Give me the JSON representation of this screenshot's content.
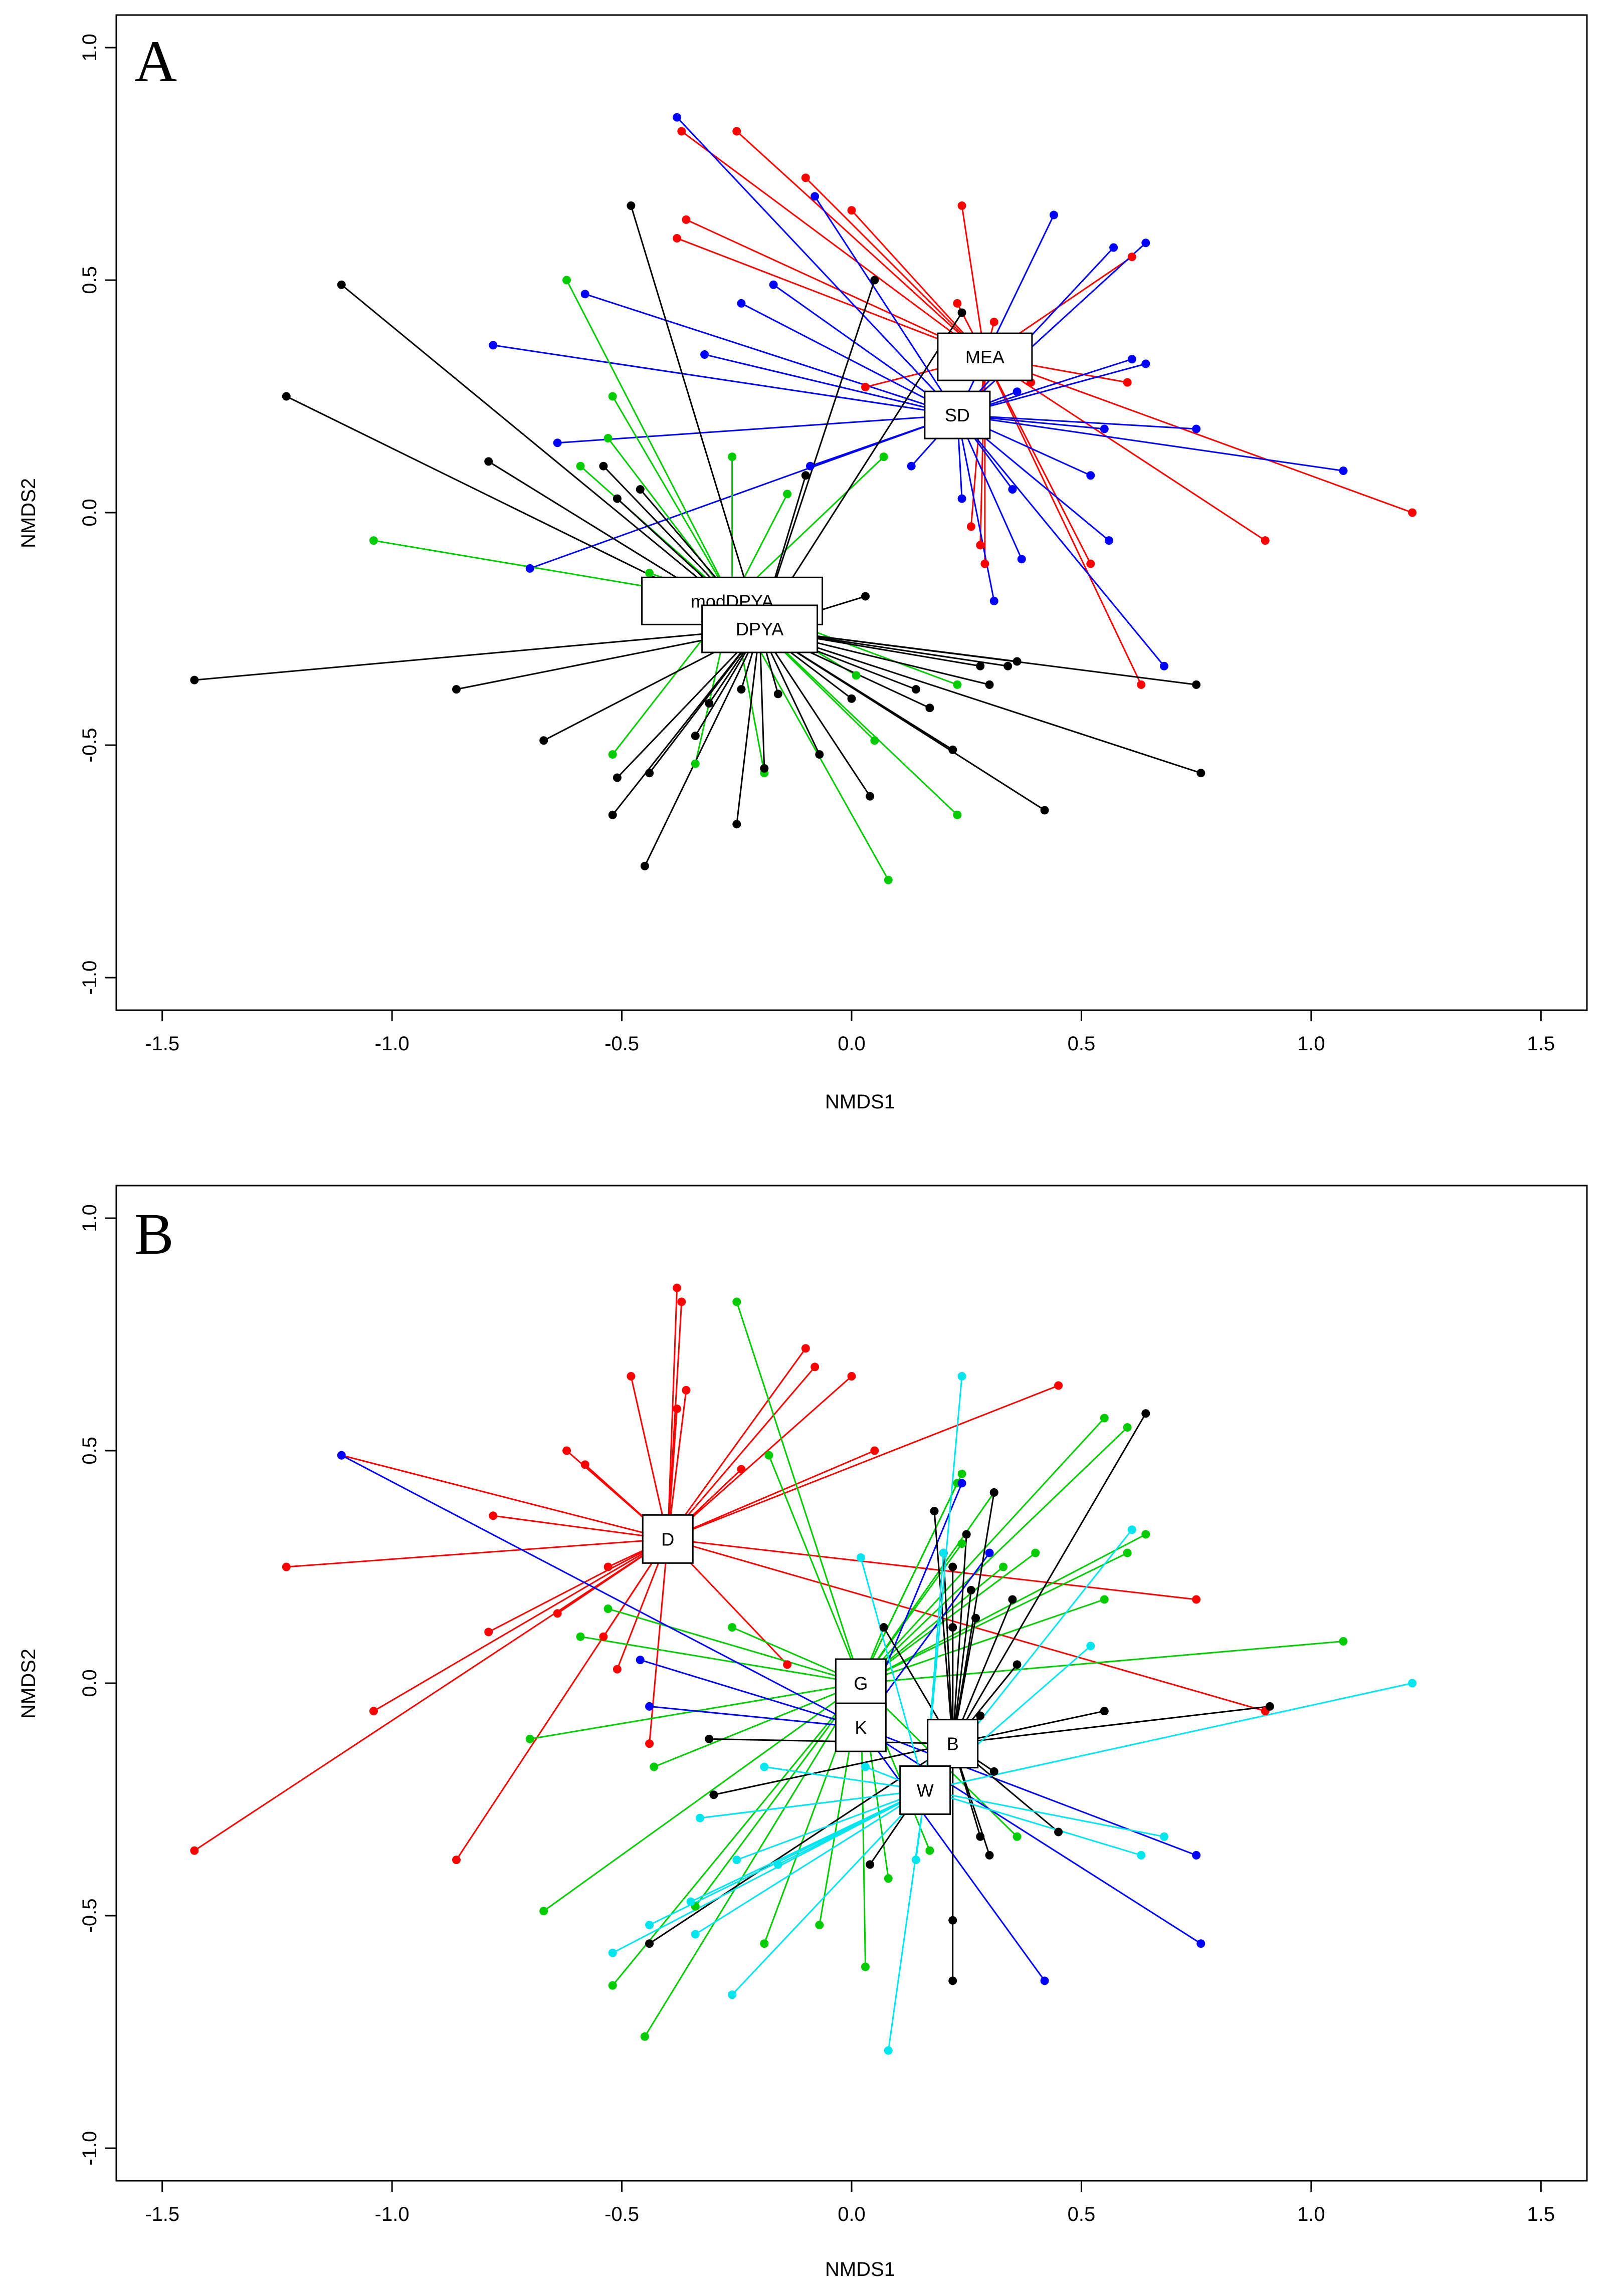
{
  "chart_data": [
    {
      "panel": "A",
      "type": "scatter",
      "subtype": "ordination-spider",
      "xlabel": "NMDS1",
      "ylabel": "NMDS2",
      "xlim": [
        -1.6,
        1.6
      ],
      "ylim": [
        -1.07,
        1.07
      ],
      "xticks": [
        "-1.5",
        "-1.0",
        "-0.5",
        "0.0",
        "0.5",
        "1.0",
        "1.5"
      ],
      "yticks": [
        "-1.0",
        "-0.5",
        "0.0",
        "0.5",
        "1.0"
      ],
      "colors": {
        "black": "#000000",
        "red": "#ff0000",
        "blue": "#0000ff",
        "green": "#00cc00"
      },
      "groups": [
        {
          "label": "MEA",
          "color": "red",
          "centroid": [
            0.29,
            0.335
          ],
          "points": [
            [
              -0.37,
              0.82
            ],
            [
              -0.25,
              0.82
            ],
            [
              -0.1,
              0.72
            ],
            [
              0.0,
              0.65
            ],
            [
              -0.36,
              0.63
            ],
            [
              -0.38,
              0.59
            ],
            [
              0.24,
              0.66
            ],
            [
              0.23,
              0.45
            ],
            [
              0.31,
              0.41
            ],
            [
              0.2,
              0.37
            ],
            [
              0.03,
              0.27
            ],
            [
              0.39,
              0.28
            ],
            [
              0.61,
              0.55
            ],
            [
              0.6,
              0.28
            ],
            [
              1.22,
              0.0
            ],
            [
              0.9,
              -0.06
            ],
            [
              0.52,
              -0.11
            ],
            [
              0.28,
              -0.07
            ],
            [
              0.29,
              -0.11
            ],
            [
              0.63,
              -0.37
            ],
            [
              0.26,
              -0.03
            ]
          ]
        },
        {
          "label": "SD",
          "color": "blue",
          "centroid": [
            0.23,
            0.21
          ],
          "points": [
            [
              -0.38,
              0.85
            ],
            [
              -0.08,
              0.68
            ],
            [
              0.44,
              0.64
            ],
            [
              0.57,
              0.57
            ],
            [
              0.64,
              0.58
            ],
            [
              -0.17,
              0.49
            ],
            [
              -0.24,
              0.45
            ],
            [
              -0.58,
              0.47
            ],
            [
              -0.78,
              0.36
            ],
            [
              -0.32,
              0.34
            ],
            [
              0.61,
              0.33
            ],
            [
              0.64,
              0.32
            ],
            [
              0.36,
              0.26
            ],
            [
              0.55,
              0.18
            ],
            [
              0.75,
              0.18
            ],
            [
              1.07,
              0.09
            ],
            [
              0.52,
              0.08
            ],
            [
              0.35,
              0.05
            ],
            [
              0.24,
              0.03
            ],
            [
              0.56,
              -0.06
            ],
            [
              0.37,
              -0.1
            ],
            [
              0.31,
              -0.19
            ],
            [
              0.68,
              -0.33
            ],
            [
              -0.64,
              0.15
            ],
            [
              -0.09,
              0.1
            ],
            [
              0.13,
              0.1
            ],
            [
              -0.7,
              -0.12
            ]
          ]
        },
        {
          "label": "modDPYA",
          "color": "green",
          "centroid": [
            -0.26,
            -0.19
          ],
          "points": [
            [
              -0.62,
              0.5
            ],
            [
              -0.52,
              0.25
            ],
            [
              -0.53,
              0.16
            ],
            [
              -0.59,
              0.1
            ],
            [
              -0.26,
              0.12
            ],
            [
              0.07,
              0.12
            ],
            [
              -0.14,
              0.04
            ],
            [
              -1.04,
              -0.06
            ],
            [
              -0.44,
              -0.13
            ],
            [
              0.01,
              -0.35
            ],
            [
              0.23,
              -0.37
            ],
            [
              -0.52,
              -0.52
            ],
            [
              -0.34,
              -0.54
            ],
            [
              0.05,
              -0.49
            ],
            [
              -0.19,
              -0.56
            ],
            [
              0.23,
              -0.65
            ],
            [
              0.08,
              -0.79
            ]
          ]
        },
        {
          "label": "DPYA",
          "color": "black",
          "centroid": [
            -0.2,
            -0.25
          ],
          "points": [
            [
              -0.48,
              0.66
            ],
            [
              -1.11,
              0.49
            ],
            [
              -1.23,
              0.25
            ],
            [
              -0.79,
              0.11
            ],
            [
              -0.54,
              0.1
            ],
            [
              -0.46,
              0.05
            ],
            [
              -0.51,
              0.03
            ],
            [
              -0.1,
              0.08
            ],
            [
              0.05,
              0.5
            ],
            [
              0.24,
              0.43
            ],
            [
              0.03,
              -0.18
            ],
            [
              -1.43,
              -0.36
            ],
            [
              -0.86,
              -0.38
            ],
            [
              -0.67,
              -0.49
            ],
            [
              -0.51,
              -0.57
            ],
            [
              -0.52,
              -0.65
            ],
            [
              -0.44,
              -0.56
            ],
            [
              -0.45,
              -0.76
            ],
            [
              -0.25,
              -0.67
            ],
            [
              -0.19,
              -0.55
            ],
            [
              -0.34,
              -0.48
            ],
            [
              -0.31,
              -0.41
            ],
            [
              -0.24,
              -0.38
            ],
            [
              -0.16,
              -0.39
            ],
            [
              -0.07,
              -0.52
            ],
            [
              0.0,
              -0.4
            ],
            [
              0.04,
              -0.61
            ],
            [
              0.14,
              -0.38
            ],
            [
              0.17,
              -0.42
            ],
            [
              0.22,
              -0.51
            ],
            [
              0.28,
              -0.33
            ],
            [
              0.3,
              -0.37
            ],
            [
              0.34,
              -0.33
            ],
            [
              0.36,
              -0.32
            ],
            [
              0.42,
              -0.64
            ],
            [
              0.75,
              -0.37
            ],
            [
              0.76,
              -0.56
            ]
          ]
        }
      ]
    },
    {
      "panel": "B",
      "type": "scatter",
      "subtype": "ordination-spider",
      "xlabel": "NMDS1",
      "ylabel": "NMDS2",
      "xlim": [
        -1.6,
        1.6
      ],
      "ylim": [
        -1.07,
        1.07
      ],
      "xticks": [
        "-1.5",
        "-1.0",
        "-0.5",
        "0.0",
        "0.5",
        "1.0",
        "1.5"
      ],
      "yticks": [
        "-1.0",
        "-0.5",
        "0.0",
        "0.5",
        "1.0"
      ],
      "colors": {
        "black": "#000000",
        "red": "#ff0000",
        "blue": "#0000ff",
        "green": "#00cc00",
        "cyan": "#00e5ee"
      },
      "groups": [
        {
          "label": "D",
          "color": "red",
          "centroid": [
            -0.4,
            0.31
          ],
          "points": [
            [
              -0.38,
              0.85
            ],
            [
              -0.37,
              0.82
            ],
            [
              -0.1,
              0.72
            ],
            [
              -0.08,
              0.68
            ],
            [
              0.0,
              0.66
            ],
            [
              -0.48,
              0.66
            ],
            [
              -0.36,
              0.63
            ],
            [
              -0.38,
              0.59
            ],
            [
              -0.62,
              0.5
            ],
            [
              -0.58,
              0.47
            ],
            [
              -0.24,
              0.46
            ],
            [
              0.05,
              0.5
            ],
            [
              0.45,
              0.64
            ],
            [
              -1.11,
              0.49
            ],
            [
              -0.78,
              0.36
            ],
            [
              -1.23,
              0.25
            ],
            [
              -0.64,
              0.15
            ],
            [
              -0.54,
              0.1
            ],
            [
              -0.51,
              0.03
            ],
            [
              -0.44,
              -0.13
            ],
            [
              -0.79,
              0.11
            ],
            [
              -1.04,
              -0.06
            ],
            [
              -0.86,
              -0.38
            ],
            [
              -1.43,
              -0.36
            ],
            [
              -0.14,
              0.04
            ],
            [
              0.75,
              0.18
            ],
            [
              0.9,
              -0.06
            ],
            [
              -0.53,
              0.25
            ]
          ]
        },
        {
          "label": "G",
          "color": "green",
          "centroid": [
            0.02,
            0.0
          ],
          "points": [
            [
              -0.25,
              0.82
            ],
            [
              -0.18,
              0.49
            ],
            [
              0.24,
              0.45
            ],
            [
              0.55,
              0.57
            ],
            [
              0.6,
              0.55
            ],
            [
              0.64,
              0.32
            ],
            [
              0.6,
              0.28
            ],
            [
              0.4,
              0.28
            ],
            [
              0.55,
              0.18
            ],
            [
              1.07,
              0.09
            ],
            [
              0.31,
              0.41
            ],
            [
              0.24,
              0.3
            ],
            [
              0.07,
              0.12
            ],
            [
              -0.26,
              0.12
            ],
            [
              -0.59,
              0.1
            ],
            [
              -0.53,
              0.16
            ],
            [
              -0.7,
              -0.12
            ],
            [
              -0.43,
              -0.18
            ],
            [
              -0.67,
              -0.49
            ],
            [
              -0.52,
              -0.65
            ],
            [
              -0.45,
              -0.76
            ],
            [
              -0.34,
              -0.48
            ],
            [
              -0.19,
              -0.56
            ],
            [
              -0.07,
              -0.52
            ],
            [
              0.03,
              -0.61
            ],
            [
              0.08,
              -0.42
            ],
            [
              0.36,
              -0.33
            ],
            [
              0.17,
              -0.36
            ],
            [
              0.23,
              0.43
            ],
            [
              0.33,
              0.25
            ]
          ]
        },
        {
          "label": "K",
          "color": "blue",
          "centroid": [
            0.02,
            -0.095
          ],
          "points": [
            [
              -1.11,
              0.49
            ],
            [
              -0.46,
              0.05
            ],
            [
              -0.44,
              -0.05
            ],
            [
              0.24,
              0.43
            ],
            [
              0.42,
              -0.64
            ],
            [
              0.75,
              -0.37
            ],
            [
              0.76,
              -0.56
            ],
            [
              0.3,
              0.28
            ]
          ]
        },
        {
          "label": "B",
          "color": "black",
          "centroid": [
            0.22,
            -0.13
          ],
          "points": [
            [
              0.64,
              0.58
            ],
            [
              0.18,
              0.37
            ],
            [
              0.31,
              0.41
            ],
            [
              0.2,
              0.28
            ],
            [
              0.22,
              0.25
            ],
            [
              0.26,
              0.2
            ],
            [
              0.35,
              0.18
            ],
            [
              0.27,
              0.14
            ],
            [
              0.22,
              0.12
            ],
            [
              0.07,
              0.12
            ],
            [
              0.36,
              0.04
            ],
            [
              0.28,
              -0.07
            ],
            [
              0.55,
              -0.06
            ],
            [
              0.91,
              -0.05
            ],
            [
              0.31,
              -0.19
            ],
            [
              -0.31,
              -0.12
            ],
            [
              -0.3,
              -0.24
            ],
            [
              -0.44,
              -0.56
            ],
            [
              0.22,
              -0.51
            ],
            [
              0.22,
              -0.64
            ],
            [
              0.04,
              -0.39
            ],
            [
              0.28,
              -0.33
            ],
            [
              0.3,
              -0.37
            ],
            [
              0.45,
              -0.32
            ],
            [
              0.25,
              0.32
            ]
          ]
        },
        {
          "label": "W",
          "color": "cyan",
          "centroid": [
            0.16,
            -0.23
          ],
          "points": [
            [
              0.24,
              0.66
            ],
            [
              0.02,
              0.27
            ],
            [
              0.2,
              0.28
            ],
            [
              0.61,
              0.33
            ],
            [
              0.52,
              0.08
            ],
            [
              1.22,
              0.0
            ],
            [
              -0.19,
              -0.18
            ],
            [
              -0.33,
              -0.29
            ],
            [
              -0.25,
              -0.38
            ],
            [
              -0.16,
              -0.39
            ],
            [
              -0.35,
              -0.47
            ],
            [
              -0.44,
              -0.52
            ],
            [
              -0.52,
              -0.58
            ],
            [
              -0.34,
              -0.54
            ],
            [
              -0.26,
              -0.67
            ],
            [
              0.08,
              -0.79
            ],
            [
              0.14,
              -0.38
            ],
            [
              0.63,
              -0.37
            ],
            [
              0.68,
              -0.33
            ],
            [
              0.03,
              -0.18
            ]
          ]
        }
      ]
    }
  ]
}
